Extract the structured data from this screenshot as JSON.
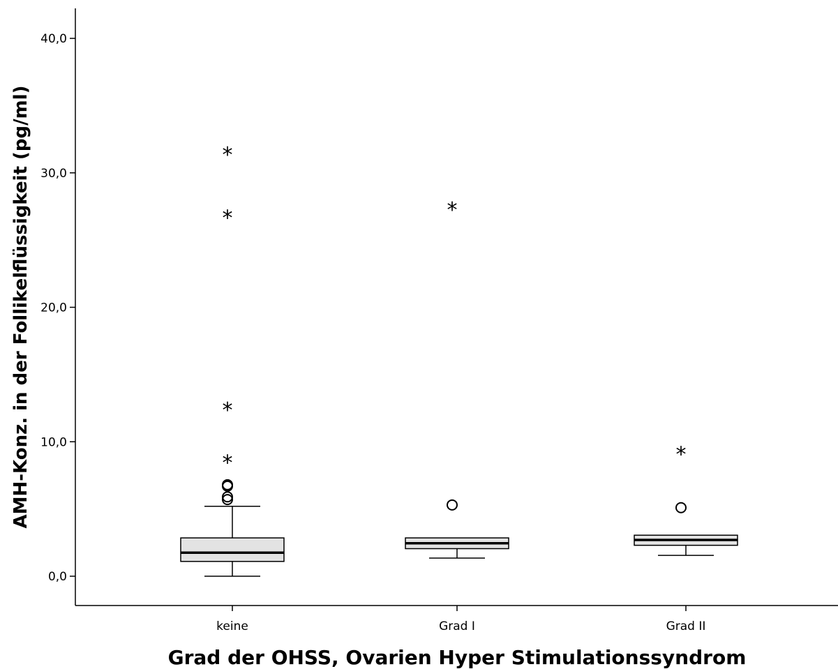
{
  "chart_data": {
    "type": "boxplot",
    "xlabel": "Grad der OHSS, Ovarien Hyper Stimulationssyndrom",
    "ylabel": "AMH-Konz. in der Follikelflüssigkeit (pg/ml)",
    "ylim": [
      -2.2,
      42.3
    ],
    "yticks": [
      0,
      10,
      20,
      30,
      40
    ],
    "ytick_labels": [
      "0,0",
      "10,0",
      "20,0",
      "30,0",
      "40,0"
    ],
    "grid": false,
    "box_fill": "#e3e3e3",
    "categories": [
      "keine",
      "Grad I",
      "Grad II"
    ],
    "boxes": [
      {
        "category": "keine",
        "whisker_low": 0.0,
        "q1": 1.1,
        "median": 1.75,
        "q3": 2.85,
        "whisker_high": 5.2,
        "outliers": [
          5.7,
          5.9,
          6.7,
          6.8
        ],
        "extremes": [
          8.7,
          12.6,
          26.9,
          31.6
        ]
      },
      {
        "category": "Grad I",
        "whisker_low": 1.35,
        "q1": 2.05,
        "median": 2.45,
        "q3": 2.85,
        "whisker_high": 2.85,
        "outliers": [
          5.3
        ],
        "extremes": [
          27.5
        ]
      },
      {
        "category": "Grad II",
        "whisker_low": 1.55,
        "q1": 2.3,
        "median": 2.7,
        "q3": 3.05,
        "whisker_high": 3.05,
        "outliers": [
          5.1
        ],
        "extremes": [
          9.3
        ]
      }
    ]
  }
}
